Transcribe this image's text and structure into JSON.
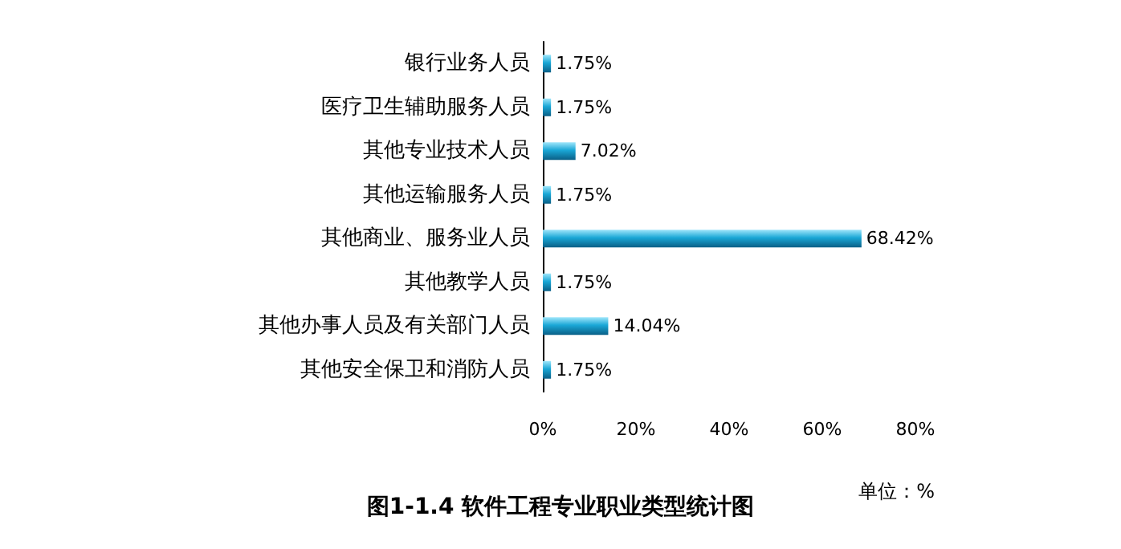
{
  "chart_data": {
    "type": "bar",
    "orientation": "horizontal",
    "title": "图1-1.4 软件工程专业职业类型统计图",
    "annotations": [
      "单位：%"
    ],
    "categories": [
      "银行业务人员",
      "医疗卫生辅助服务人员",
      "其他专业技术人员",
      "其他运输服务人员",
      "其他商业、服务业人员",
      "其他教学人员",
      "其他办事人员及有关部门人员",
      "其他安全保卫和消防人员"
    ],
    "values": [
      1.75,
      1.75,
      7.02,
      1.75,
      68.42,
      1.75,
      14.04,
      1.75
    ],
    "value_labels": [
      "1.75%",
      "1.75%",
      "7.02%",
      "1.75%",
      "68.42%",
      "1.75%",
      "14.04%",
      "1.75%"
    ],
    "color": "#1aa7d6",
    "xlim": [
      0,
      80
    ],
    "xticks": [
      {
        "value": 0,
        "label": "0%"
      },
      {
        "value": 20,
        "label": "20%"
      },
      {
        "value": 40,
        "label": "40%"
      },
      {
        "value": 60,
        "label": "60%"
      },
      {
        "value": 80,
        "label": "80%"
      }
    ],
    "grid": false
  }
}
